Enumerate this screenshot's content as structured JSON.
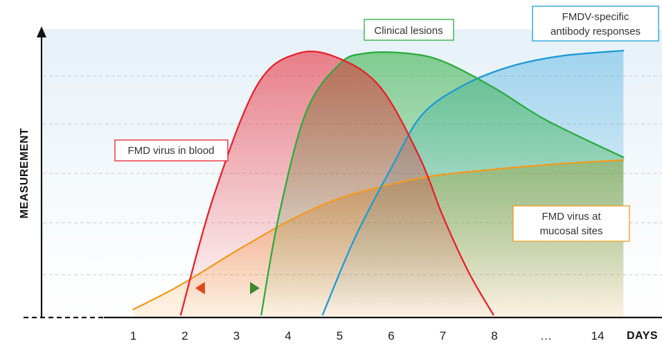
{
  "chart_data": {
    "type": "area",
    "xlabel": "DAYS",
    "ylabel": "MEASUREMENT",
    "x_ticks": [
      "1",
      "2",
      "3",
      "4",
      "5",
      "6",
      "7",
      "8",
      "…",
      "14"
    ],
    "x_tick_positions": [
      1,
      2,
      3,
      4,
      5,
      6,
      7,
      8,
      9,
      10
    ],
    "xlim": [
      0,
      10.5
    ],
    "ylim": [
      0,
      1
    ],
    "grid": true,
    "series": [
      {
        "name": "FMD virus in blood",
        "color": "#e8202a",
        "points": [
          [
            1.92,
            0.01
          ],
          [
            2.55,
            0.45
          ],
          [
            3.4,
            0.87
          ],
          [
            4.2,
            0.99
          ],
          [
            5.0,
            0.97
          ],
          [
            5.8,
            0.86
          ],
          [
            6.55,
            0.6
          ],
          [
            7.0,
            0.38
          ],
          [
            7.5,
            0.17
          ],
          [
            7.98,
            0.01
          ]
        ]
      },
      {
        "name": "Clinical lesions",
        "color": "#2bab3b",
        "points": [
          [
            3.48,
            0.01
          ],
          [
            3.82,
            0.38
          ],
          [
            4.35,
            0.77
          ],
          [
            5.0,
            0.95
          ],
          [
            5.5,
            0.99
          ],
          [
            6.3,
            0.99
          ],
          [
            7.0,
            0.96
          ],
          [
            8.0,
            0.86
          ],
          [
            9.0,
            0.74
          ],
          [
            10.5,
            0.6
          ]
        ]
      },
      {
        "name": "FMDV-specific antibody responses",
        "color": "#1c9ad6",
        "points": [
          [
            4.67,
            0.01
          ],
          [
            5.3,
            0.3
          ],
          [
            6.0,
            0.56
          ],
          [
            6.6,
            0.76
          ],
          [
            7.4,
            0.87
          ],
          [
            8.3,
            0.94
          ],
          [
            9.3,
            0.98
          ],
          [
            10.5,
            1.0
          ]
        ]
      },
      {
        "name": "FMD virus at mucosal sites",
        "color": "#f29a1e",
        "points": [
          [
            1.0,
            0.03
          ],
          [
            1.9,
            0.12
          ],
          [
            3.0,
            0.25
          ],
          [
            4.0,
            0.36
          ],
          [
            4.9,
            0.44
          ],
          [
            5.8,
            0.49
          ],
          [
            6.8,
            0.53
          ],
          [
            8.0,
            0.555
          ],
          [
            9.2,
            0.575
          ],
          [
            10.5,
            0.59
          ]
        ]
      }
    ],
    "annotations": [
      {
        "text": "FMD virus in blood",
        "color": "#e8202a"
      },
      {
        "text": "Clinical lesions",
        "color": "#2bab3b"
      },
      {
        "text": "FMDV-specific antibody responses",
        "color": "#1c9ad6",
        "lines": [
          "FMDV-specific",
          "antibody responses"
        ]
      },
      {
        "text": "FMD virus at mucosal sites",
        "color": "#f29a1e",
        "lines": [
          "FMD virus at",
          "mucosal sites"
        ]
      }
    ],
    "arrow": {
      "from_x": 2.2,
      "to_x": 3.45,
      "y": 0.11,
      "colors": [
        "#e04a1b",
        "#3c8a2e"
      ]
    }
  }
}
